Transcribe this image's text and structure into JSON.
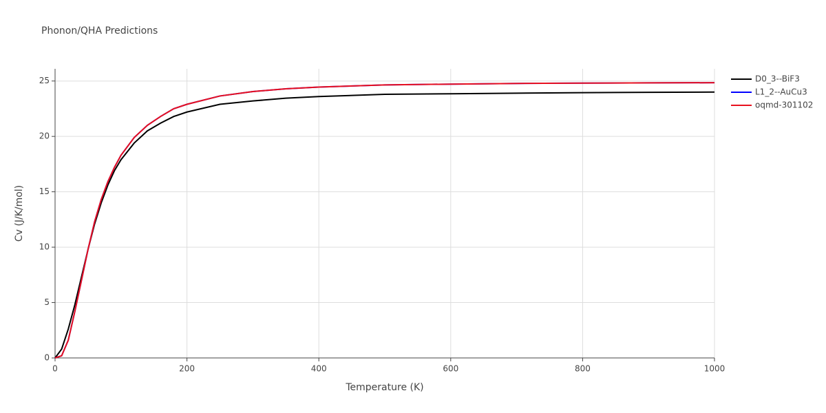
{
  "chart_data": {
    "type": "line",
    "title": "Phonon/QHA Predictions",
    "x_label": "Temperature (K)",
    "y_label": "Cv (J/K/mol)",
    "x": [
      0,
      10,
      20,
      30,
      40,
      50,
      60,
      70,
      80,
      90,
      100,
      120,
      140,
      160,
      180,
      200,
      250,
      300,
      350,
      400,
      500,
      600,
      700,
      800,
      900,
      1000
    ],
    "series": [
      {
        "name": "D0_3--BiF3",
        "color": "#000000",
        "values": [
          0,
          0.8,
          2.6,
          4.8,
          7.3,
          9.8,
          12.1,
          14.0,
          15.6,
          16.9,
          17.9,
          19.4,
          20.5,
          21.2,
          21.8,
          22.2,
          22.9,
          23.2,
          23.45,
          23.6,
          23.8,
          23.85,
          23.9,
          23.95,
          23.98,
          24.0
        ]
      },
      {
        "name": "L1_2--AuCu3",
        "color": "#0000ff",
        "values": [
          0,
          0.2,
          1.6,
          4.2,
          7.0,
          9.8,
          12.3,
          14.3,
          15.9,
          17.2,
          18.3,
          19.9,
          21.0,
          21.8,
          22.5,
          22.9,
          23.65,
          24.05,
          24.3,
          24.45,
          24.65,
          24.72,
          24.78,
          24.81,
          24.83,
          24.85
        ]
      },
      {
        "name": "oqmd-301102",
        "color": "#e8101e",
        "values": [
          0,
          0.2,
          1.6,
          4.2,
          7.0,
          9.8,
          12.3,
          14.3,
          15.9,
          17.2,
          18.3,
          19.9,
          21.0,
          21.8,
          22.5,
          22.9,
          23.65,
          24.05,
          24.3,
          24.45,
          24.65,
          24.72,
          24.78,
          24.81,
          24.83,
          24.85
        ]
      }
    ],
    "xlim": [
      0,
      1000
    ],
    "xticks": [
      0,
      200,
      400,
      600,
      800,
      1000
    ],
    "ylim": [
      0,
      26.1
    ],
    "yticks": [
      0,
      5,
      10,
      15,
      20,
      25
    ],
    "grid": true,
    "legend": "right"
  }
}
